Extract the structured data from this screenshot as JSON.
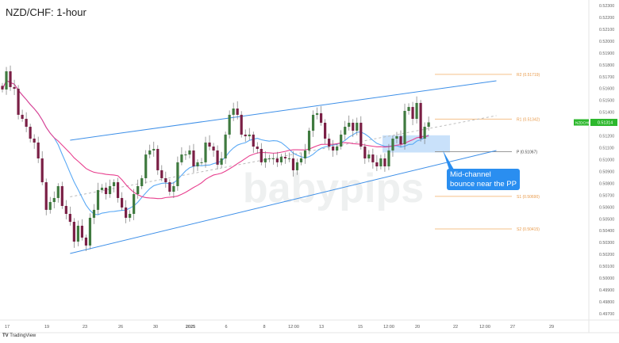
{
  "title": "NZD/CHF: 1-hour",
  "annotation": "Mid-channel bounce near the PP and SMAs",
  "brand": "TradingView",
  "watermark": "babypips",
  "symbol_tag": "NZDCHF",
  "colors": {
    "up": "#3f7a3f",
    "down": "#7a1f45",
    "sma_fast": "#5aa9f5",
    "sma_slow": "#e8408f",
    "channel": "#3d8fe8",
    "pivot": "#f5c08a",
    "pivot_p": "#999999",
    "price_tag": "#2db82d",
    "note": "#2a8ef0"
  },
  "chart_data": {
    "type": "candlestick",
    "symbol": "NZDCHF",
    "timeframe": "1-hour",
    "ylim": [
      0.4965,
      0.5234
    ],
    "y_ticks": [
      "0.52300",
      "0.52200",
      "0.52100",
      "0.52000",
      "0.51900",
      "0.51800",
      "0.51700",
      "0.51600",
      "0.51500",
      "0.51400",
      "0.51200",
      "0.51100",
      "0.51000",
      "0.50900",
      "0.50800",
      "0.50700",
      "0.50600",
      "0.50500",
      "0.50400",
      "0.50300",
      "0.50200",
      "0.50100",
      "0.50000",
      "0.49900",
      "0.49800",
      "0.49700"
    ],
    "x_ticks": [
      "17",
      "19",
      "23",
      "26",
      "30",
      "2025",
      "6",
      "8",
      "12:00",
      "13",
      "15",
      "12:00",
      "20",
      "22",
      "12:00",
      "27",
      "29"
    ],
    "last_price": "0.51314",
    "closes": [
      0.51592,
      0.51745,
      0.51612,
      0.51598,
      0.51378,
      0.51344,
      0.51277,
      0.51177,
      0.51144,
      0.5101,
      0.50809,
      0.50576,
      0.50642,
      0.50676,
      0.50776,
      0.50609,
      0.50542,
      0.50475,
      0.50308,
      0.50442,
      0.50342,
      0.50275,
      0.50509,
      0.50576,
      0.50743,
      0.50763,
      0.50709,
      0.50776,
      0.50809,
      0.50676,
      0.50596,
      0.50509,
      0.50542,
      0.50709,
      0.50776,
      0.50843,
      0.51043,
      0.51077,
      0.5109,
      0.5091,
      0.50843,
      0.50809,
      0.50729,
      0.50776,
      0.50977,
      0.51043,
      0.51043,
      0.51077,
      0.50943,
      0.50977,
      0.50977,
      0.51144,
      0.5111,
      0.51077,
      0.50957,
      0.5101,
      0.51211,
      0.51378,
      0.51431,
      0.51378,
      0.51211,
      0.51197,
      0.51211,
      0.5111,
      0.5109,
      0.50977,
      0.5101,
      0.5101,
      0.5101,
      0.50977,
      0.51023,
      0.5101,
      0.5101,
      0.5091,
      0.50977,
      0.5101,
      0.51077,
      0.51244,
      0.51378,
      0.51391,
      0.51311,
      0.51177,
      0.5111,
      0.51077,
      0.5111,
      0.51211,
      0.51277,
      0.51311,
      0.51244,
      0.51311,
      0.5111,
      0.5101,
      0.51043,
      0.50977,
      0.50943,
      0.5101,
      0.50943,
      0.51077,
      0.51177,
      0.51197,
      0.5113,
      0.51411,
      0.51444,
      0.51344,
      0.51478,
      0.51177,
      0.51277,
      0.51314
    ],
    "sma_periods": {
      "fast": 14,
      "slow": 30
    },
    "channel": {
      "upper": [
        [
          17,
          0.51164
        ],
        [
          124,
          0.51665
        ]
      ],
      "lower": [
        [
          17,
          0.50208
        ],
        [
          124,
          0.51077
        ]
      ],
      "mid": [
        [
          17,
          0.50686
        ],
        [
          124,
          0.51371
        ]
      ]
    },
    "pivots": [
      {
        "name": "R2",
        "value": 0.51719,
        "label": "R2 (0.51719)"
      },
      {
        "name": "R1",
        "value": 0.51342,
        "label": "R1 (0.51342)"
      },
      {
        "name": "P",
        "value": 0.51067,
        "label": "P (0.51067)"
      },
      {
        "name": "S1",
        "value": 0.5069,
        "label": "S1 (0.50690)"
      },
      {
        "name": "S2",
        "value": 0.50415,
        "label": "S2 (0.50415)"
      }
    ],
    "highlight_zone": {
      "from_index": 95,
      "to_index": 112,
      "low": 0.5106,
      "high": 0.51205
    }
  }
}
